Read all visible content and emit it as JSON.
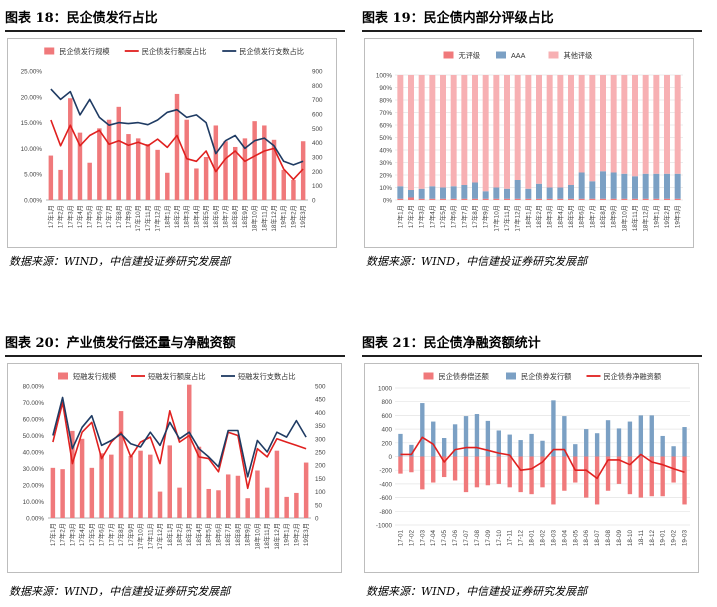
{
  "charts": [
    {
      "title": "图表 18：民企债发行占比",
      "source": "数据来源：WIND，中信建投证券研究发展部",
      "chart_data": {
        "type": "bar",
        "categories": [
          "17年1月",
          "17年2月",
          "17年3月",
          "17年4月",
          "17年5月",
          "17年6月",
          "17年7月",
          "17年8月",
          "17年9月",
          "17年10月",
          "17年11月",
          "17年12月",
          "18年1月",
          "18年2月",
          "18年3月",
          "18年4月",
          "18年5月",
          "18年6月",
          "18年7月",
          "18年8月",
          "18年9月",
          "18年10月",
          "18年11月",
          "18年12月",
          "19年1月",
          "19年2月",
          "19年3月"
        ],
        "series": [
          {
            "name": "民企债发行规模",
            "type": "bar",
            "axis": "right",
            "color": "#f0797b",
            "values": [
              310,
              210,
              710,
              470,
              260,
              500,
              560,
              650,
              460,
              430,
              390,
              350,
              190,
              740,
              560,
              220,
              300,
              520,
              410,
              370,
              430,
              550,
              520,
              420,
              210,
              140,
              410
            ]
          },
          {
            "name": "民企债发行额度占比",
            "type": "line",
            "axis": "left",
            "color": "#e0201f",
            "values": [
              15.5,
              10.5,
              14.5,
              10.5,
              12.5,
              13.5,
              10.8,
              11.5,
              10.6,
              11.2,
              10.5,
              11.8,
              10.2,
              12.5,
              8.0,
              7.5,
              9.5,
              5.5,
              8.0,
              9.5,
              7.5,
              8.5,
              9.5,
              10.0,
              6.0,
              4.0,
              6.0
            ]
          },
          {
            "name": "民企债发行支数占比",
            "type": "line",
            "axis": "left",
            "color": "#1f3b63",
            "values": [
              21.5,
              19.5,
              21.0,
              16.5,
              19.5,
              16.0,
              14.5,
              15.0,
              14.8,
              15.0,
              14.6,
              15.5,
              17.0,
              17.5,
              16.0,
              16.5,
              15.0,
              9.0,
              11.5,
              12.5,
              10.0,
              11.5,
              12.0,
              10.5,
              7.5,
              6.8,
              7.5
            ]
          }
        ],
        "y_left": {
          "ticks": [
            "0.00%",
            "5.00%",
            "10.00%",
            "15.00%",
            "20.00%",
            "25.00%"
          ],
          "range": [
            0,
            25
          ]
        },
        "y_right": {
          "ticks": [
            "0",
            "100",
            "200",
            "300",
            "400",
            "500",
            "600",
            "700",
            "800",
            "900"
          ],
          "range": [
            0,
            900
          ]
        },
        "legend": "top"
      }
    },
    {
      "title": "图表 19：民企债内部分评级占比",
      "source": "数据来源：WIND，中信建投证券研究发展部",
      "chart_data": {
        "type": "bar",
        "stacked": true,
        "categories": [
          "17年1月",
          "17年2月",
          "17年3月",
          "17年4月",
          "17年5月",
          "17年6月",
          "17年7月",
          "17年8月",
          "17年9月",
          "17年10月",
          "17年11月",
          "17年12月",
          "18年1月",
          "18年2月",
          "18年3月",
          "18年4月",
          "18年5月",
          "18年6月",
          "18年7月",
          "18年8月",
          "18年9月",
          "18年10月",
          "18年11月",
          "18年12月",
          "19年1月",
          "19年2月",
          "19年3月"
        ],
        "series": [
          {
            "name": "无评级",
            "color": "#f0797b",
            "values": [
              1,
              2,
              1,
              1,
              1,
              1,
              1,
              1,
              1,
              1,
              1,
              1,
              1,
              1,
              1,
              1,
              1,
              1,
              1,
              1,
              1,
              1,
              1,
              1,
              1,
              1,
              1
            ]
          },
          {
            "name": "AAA",
            "color": "#7ba0c4",
            "values": [
              10,
              6,
              8,
              10,
              9,
              10,
              11,
              13,
              6,
              9,
              8,
              15,
              8,
              12,
              9,
              9,
              11,
              21,
              14,
              22,
              21,
              20,
              18,
              20,
              20,
              20,
              20
            ]
          },
          {
            "name": "其他评级",
            "color": "#f7b0b3",
            "values": [
              89,
              92,
              91,
              89,
              90,
              89,
              88,
              86,
              93,
              90,
              91,
              84,
              91,
              87,
              90,
              90,
              88,
              78,
              85,
              77,
              78,
              79,
              81,
              79,
              79,
              79,
              79
            ]
          }
        ],
        "y": {
          "ticks": [
            "0%",
            "10%",
            "20%",
            "30%",
            "40%",
            "50%",
            "60%",
            "70%",
            "80%",
            "90%",
            "100%"
          ],
          "range": [
            0,
            100
          ]
        },
        "legend": "top"
      }
    },
    {
      "title": "图表 20：产业债发行偿还量与净融资额",
      "source": "数据来源：WIND，中信建投证券研究发展部",
      "chart_data": {
        "type": "bar",
        "categories": [
          "17年1月",
          "17年2月",
          "17年3月",
          "17年4月",
          "17年5月",
          "17年6月",
          "17年7月",
          "17年8月",
          "17年9月",
          "17年10月",
          "17年11月",
          "17年12月",
          "18年1月",
          "18年2月",
          "18年3月",
          "18年4月",
          "18年5月",
          "18年6月",
          "18年7月",
          "18年8月",
          "18年9月",
          "18年10月",
          "18年11月",
          "18年12月",
          "19年1月",
          "19年2月",
          "19年3月"
        ],
        "series": [
          {
            "name": "短融发行规模",
            "type": "bar",
            "axis": "right",
            "color": "#f0797b",
            "values": [
              190,
              185,
              330,
              300,
              190,
              245,
              240,
              405,
              235,
              255,
              240,
              100,
              275,
              115,
              505,
              270,
              110,
              105,
              165,
              160,
              75,
              180,
              115,
              255,
              80,
              95,
              210
            ]
          },
          {
            "name": "短融发行额度占比",
            "type": "line",
            "axis": "left",
            "color": "#e0201f",
            "values": [
              46,
              70,
              33,
              52,
              58,
              36,
              46,
              52,
              37,
              46,
              49,
              33,
              65,
              46,
              50,
              37,
              36,
              28,
              52,
              50,
              18,
              42,
              37,
              48,
              46,
              44,
              42
            ]
          },
          {
            "name": "短融发行支数占比",
            "type": "line",
            "axis": "left",
            "color": "#1f3b63",
            "values": [
              50,
              73,
              42,
              55,
              62,
              44,
              47,
              51,
              45,
              43,
              52,
              44,
              58,
              48,
              52,
              42,
              37,
              31,
              53,
              53,
              25,
              47,
              40,
              52,
              49,
              59,
              49
            ]
          }
        ],
        "y_left": {
          "ticks": [
            "0.00%",
            "10.00%",
            "20.00%",
            "30.00%",
            "40.00%",
            "50.00%",
            "60.00%",
            "70.00%",
            "80.00%"
          ],
          "range": [
            0,
            80
          ]
        },
        "y_right": {
          "ticks": [
            "0",
            "50",
            "100",
            "150",
            "200",
            "250",
            "300",
            "350",
            "400",
            "450",
            "500"
          ],
          "range": [
            0,
            500
          ]
        },
        "legend": "top"
      }
    },
    {
      "title": "图表 21：民企债净融资额统计",
      "source": "数据来源：WIND，中信建投证券研究发展部",
      "chart_data": {
        "type": "bar",
        "categories": [
          "17-01",
          "17-02",
          "17-03",
          "17-04",
          "17-05",
          "17-06",
          "17-07",
          "17-08",
          "17-09",
          "17-10",
          "17-11",
          "17-12",
          "18-01",
          "18-02",
          "18-03",
          "18-04",
          "18-05",
          "18-06",
          "18-07",
          "18-08",
          "18-09",
          "18-10",
          "18-11",
          "18-12",
          "19-01",
          "19-02",
          "19-03"
        ],
        "series": [
          {
            "name": "民企债券偿还额",
            "type": "bar",
            "color": "#f0797b",
            "values": [
              -250,
              -230,
              -480,
              -380,
              -300,
              -350,
              -520,
              -450,
              -420,
              -400,
              -450,
              -520,
              -550,
              -450,
              -700,
              -500,
              -380,
              -600,
              -700,
              -500,
              -400,
              -550,
              -600,
              -580,
              -580,
              -380,
              -700
            ]
          },
          {
            "name": "民企债券发行额",
            "type": "bar",
            "color": "#7ba0c4",
            "values": [
              330,
              170,
              780,
              510,
              270,
              470,
              590,
              620,
              520,
              380,
              320,
              240,
              330,
              230,
              820,
              590,
              180,
              400,
              340,
              530,
              410,
              510,
              600,
              600,
              300,
              150,
              430
            ]
          },
          {
            "name": "民企债券净融资额",
            "type": "line",
            "color": "#e0201f",
            "values": [
              30,
              30,
              280,
              180,
              -80,
              100,
              130,
              130,
              90,
              50,
              20,
              -200,
              -180,
              -80,
              100,
              100,
              -200,
              -200,
              -320,
              -50,
              -50,
              -120,
              30,
              -80,
              -120,
              -180,
              -230
            ]
          }
        ],
        "y": {
          "ticks": [
            "-1000",
            "-800",
            "-600",
            "-400",
            "-200",
            "0",
            "200",
            "400",
            "600",
            "800",
            "1000"
          ],
          "range": [
            -1000,
            1000
          ]
        },
        "legend": "top"
      }
    }
  ]
}
